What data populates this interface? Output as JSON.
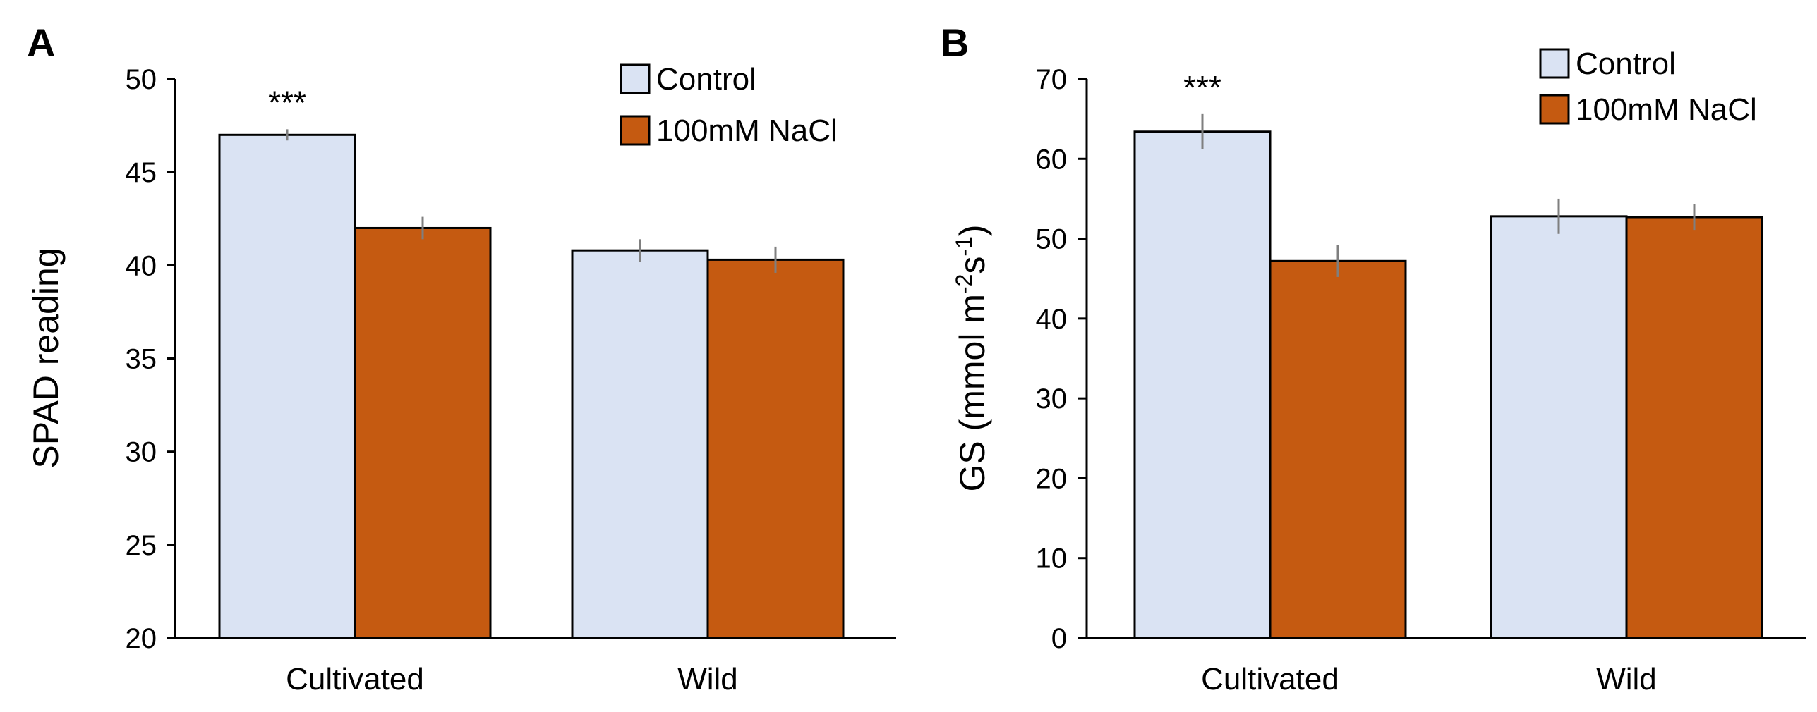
{
  "chart_data": [
    {
      "panel_label": "A",
      "type": "bar",
      "categories": [
        "Cultivated",
        "Wild"
      ],
      "series": [
        {
          "name": "Control",
          "color": "#dae3f3",
          "values": [
            47.0,
            40.8
          ],
          "errors": [
            0.3,
            0.6
          ]
        },
        {
          "name": "100mM NaCl",
          "color": "#c55a11",
          "values": [
            42.0,
            40.3
          ],
          "errors": [
            0.6,
            0.7
          ]
        }
      ],
      "significance": [
        {
          "category_index": 0,
          "series_index": 0,
          "label": "***"
        }
      ],
      "ylabel": "SPAD reading",
      "ylabel_superscripts": [],
      "ylim": [
        20,
        50
      ],
      "yticks": [
        20,
        25,
        30,
        35,
        40,
        45,
        50
      ],
      "legend_position": "top-right",
      "grid": false
    },
    {
      "panel_label": "B",
      "type": "bar",
      "categories": [
        "Cultivated",
        "Wild"
      ],
      "series": [
        {
          "name": "Control",
          "color": "#dae3f3",
          "values": [
            63.4,
            52.8
          ],
          "errors": [
            2.2,
            2.2
          ]
        },
        {
          "name": "100mM NaCl",
          "color": "#c55a11",
          "values": [
            47.2,
            52.7
          ],
          "errors": [
            2.0,
            1.6
          ]
        }
      ],
      "significance": [
        {
          "category_index": 0,
          "series_index": 0,
          "label": "***"
        }
      ],
      "ylabel": "GS (mmol m-2s-1)",
      "ylabel_parts": [
        {
          "text": "GS (mmol m",
          "sup": false
        },
        {
          "text": "-2",
          "sup": true
        },
        {
          "text": "s",
          "sup": false
        },
        {
          "text": "-1",
          "sup": true
        },
        {
          "text": ")",
          "sup": false
        }
      ],
      "ylim": [
        0,
        70
      ],
      "yticks": [
        0,
        10,
        20,
        30,
        40,
        50,
        60,
        70
      ],
      "legend_position": "top-right",
      "grid": false
    }
  ]
}
